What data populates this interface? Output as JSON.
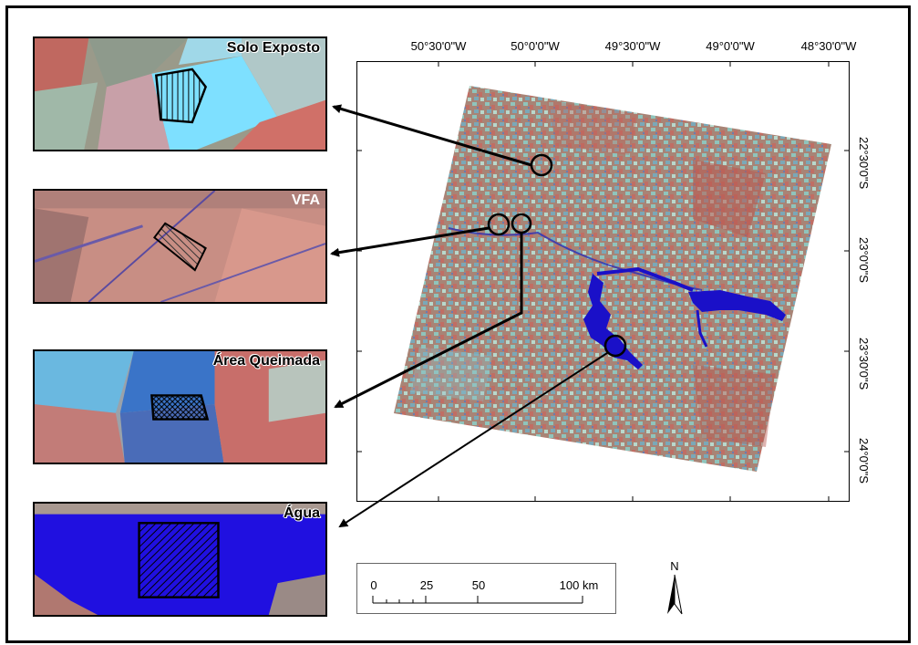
{
  "insets": [
    {
      "label": "Solo Exposto"
    },
    {
      "label": "VFA"
    },
    {
      "label": "Área Queimada"
    },
    {
      "label": "Água"
    }
  ],
  "map": {
    "longitude_labels": [
      "50°30'0\"W",
      "50°0'0\"W",
      "49°30'0\"W",
      "49°0'0\"W",
      "48°30'0\"W"
    ],
    "latitude_labels": [
      "22°30'0\"S",
      "23°0'0\"S",
      "23°30'0\"S",
      "24°0'0\"S"
    ]
  },
  "scale_bar": {
    "labels": [
      "0",
      "25",
      "50",
      "100 km"
    ]
  },
  "north_arrow": {
    "label": "N"
  },
  "colors": {
    "water": "#1a10c8",
    "soil": "#c0605a",
    "vegetation": "#7fb8b0",
    "bare_soil": "#8ee6ff"
  }
}
